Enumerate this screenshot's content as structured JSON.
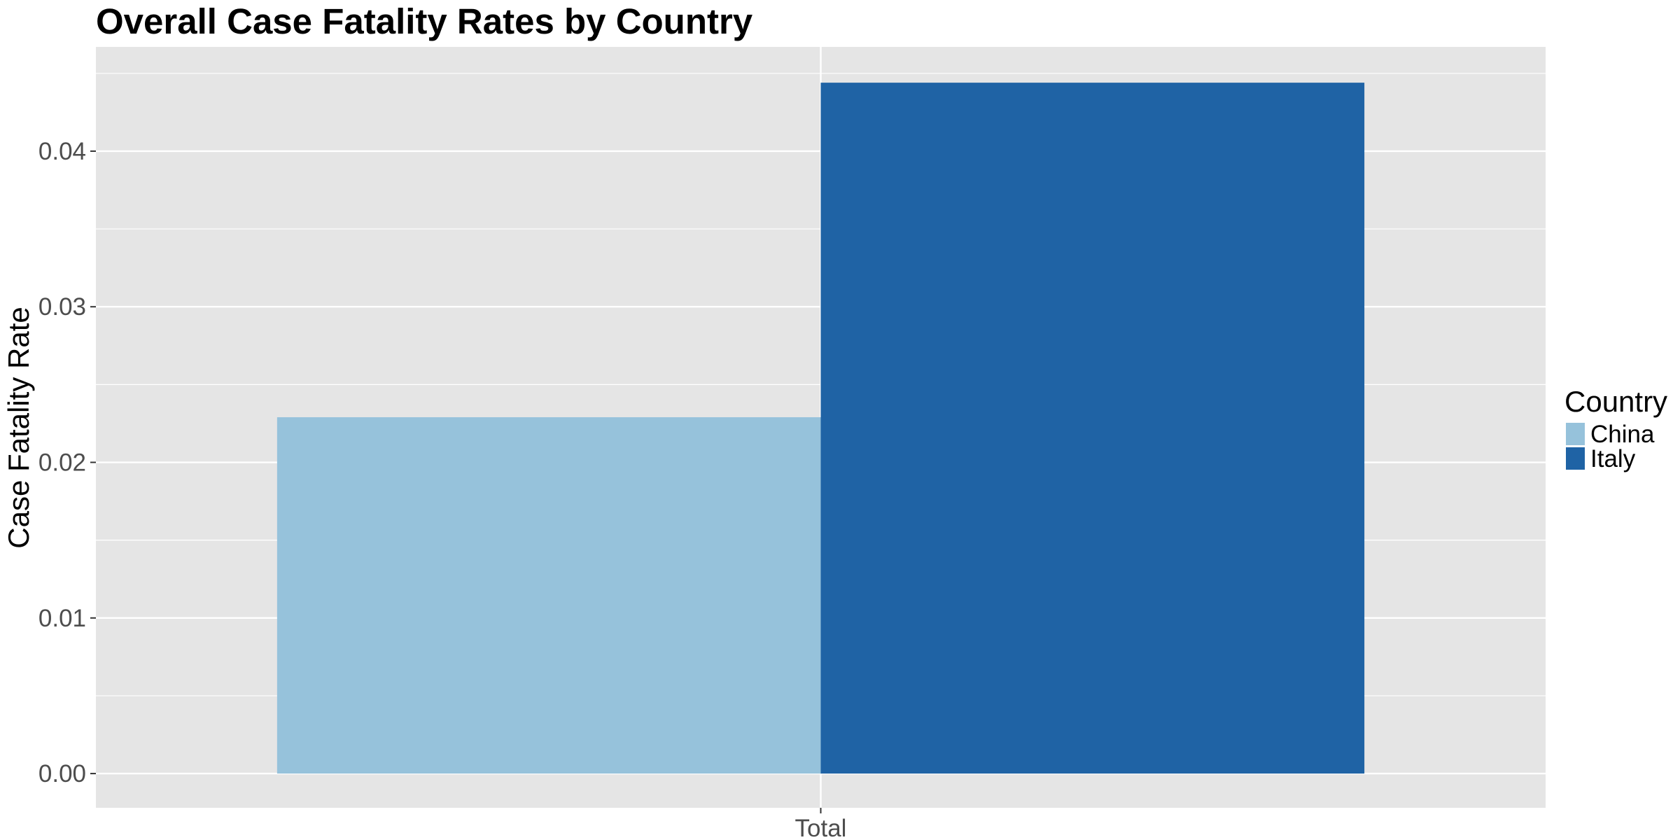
{
  "chart_data": {
    "type": "bar",
    "title": "Overall Case Fatality Rates by Country",
    "xlabel": "",
    "ylabel": "Case Fatality Rate",
    "categories": [
      "Total"
    ],
    "series": [
      {
        "name": "China",
        "values": [
          0.0229
        ],
        "color": "#96c2db"
      },
      {
        "name": "Italy",
        "values": [
          0.0444
        ],
        "color": "#1f63a5"
      }
    ],
    "ylim": [
      -0.0022,
      0.0467
    ],
    "y_ticks": [
      "0.00",
      "0.01",
      "0.02",
      "0.03",
      "0.04"
    ],
    "grid": true,
    "legend": {
      "title": "Country",
      "position": "right"
    },
    "panel_background": "#e5e5e5",
    "grid_color": "#ffffff"
  }
}
